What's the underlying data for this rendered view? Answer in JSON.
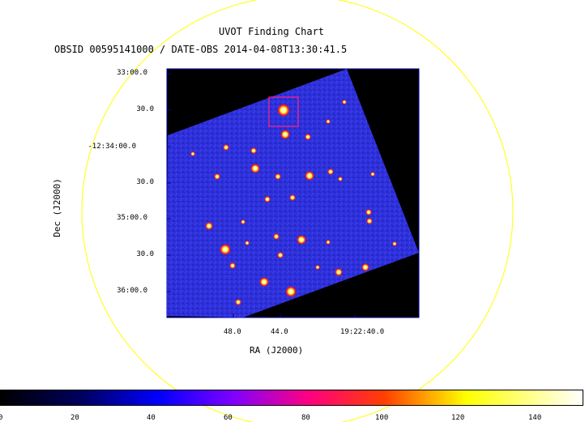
{
  "title": "UVOT Finding Chart",
  "subtitle": "OBSID 00595141000 / DATE-OBS 2014-04-08T13:30:41.5",
  "colors": {
    "background_sky": "#000000",
    "image_field": "#2a32d8",
    "circle": "#ffff00",
    "frame": "#0000a0"
  },
  "chart_data": {
    "type": "heatmap",
    "title": "UVOT Finding Chart",
    "subtitle": "OBSID 00595141000 / DATE-OBS 2014-04-08T13:30:41.5",
    "xlabel": "RA (J2000)",
    "ylabel": "Dec (J2000)",
    "x_tick_labels": [
      "48.0",
      "44.0",
      "19:22:40.0"
    ],
    "y_tick_labels": [
      "33:00.0",
      "30.0",
      "-12:34:00.0",
      "30.0",
      "35:00.0",
      "30.0",
      "36:00.0"
    ],
    "colorbar": {
      "range": [
        0,
        150
      ],
      "tick_labels": [
        "0",
        "20",
        "40",
        "60",
        "80",
        "100",
        "120",
        "140"
      ],
      "colormap": "heat"
    },
    "grid": false
  }
}
